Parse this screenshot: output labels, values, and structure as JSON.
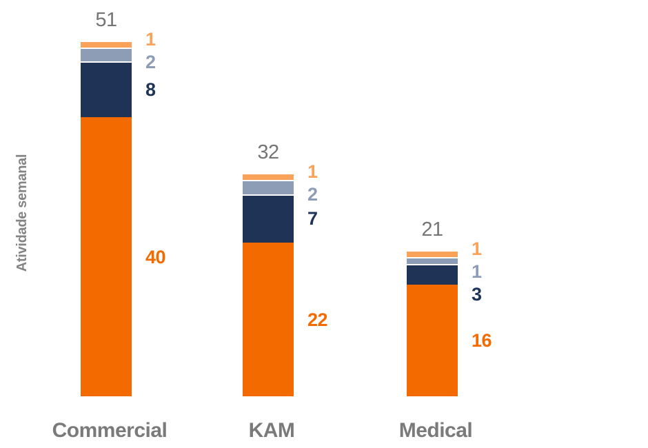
{
  "chart_data": {
    "type": "bar",
    "stacked": true,
    "title": "",
    "xlabel": "",
    "ylabel": "Atividade semanal",
    "categories": [
      "Commercial",
      "KAM",
      "Medical"
    ],
    "totals": [
      51,
      32,
      21
    ],
    "series": [
      {
        "name": "orange-base",
        "color": "#F36B00",
        "values": [
          40,
          22,
          16
        ]
      },
      {
        "name": "navy",
        "color": "#1E3355",
        "values": [
          8,
          7,
          3
        ]
      },
      {
        "name": "slate-gray",
        "color": "#8E9DB6",
        "values": [
          2,
          2,
          1
        ]
      },
      {
        "name": "light-orange",
        "color": "#F9A25A",
        "values": [
          1,
          1,
          1
        ]
      }
    ],
    "legend": "none",
    "grid": false,
    "axis_lines": false,
    "value_label_placement": "right of bar, colored to match segment",
    "total_label_placement": "above each bar"
  },
  "styles": {
    "background": "#FFFFFF",
    "total_label_color": "#757575",
    "category_label_color": "#7A7A7A",
    "ylabel_color": "#848484",
    "segment_gap_color": "#FFFFFF"
  }
}
